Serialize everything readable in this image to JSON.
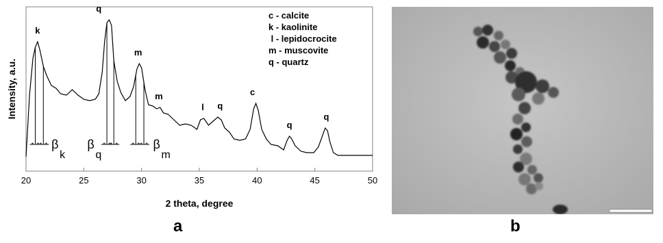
{
  "chart_data": {
    "type": "line",
    "xlabel": "2 theta, degree",
    "ylabel": "Intensity, a.u.",
    "xlim": [
      20,
      50
    ],
    "ylim": [
      0,
      100
    ],
    "x_ticks": [
      "20",
      "25",
      "30",
      "35",
      "40",
      "45",
      "50"
    ],
    "grid": false,
    "legend_position": "top-right",
    "legend": [
      "c - calcite",
      "k - kaolinite",
      " l - lepidocrocite",
      "m - muscovite",
      "q - quartz"
    ],
    "series": [
      {
        "x": [
          20.0,
          20.3,
          20.6,
          20.8,
          21.0,
          21.2,
          21.5,
          21.8,
          22.2,
          22.6,
          23.0,
          23.5,
          24.0,
          24.5,
          25.0,
          25.5,
          26.0,
          26.3,
          26.6,
          26.8,
          27.0,
          27.2,
          27.4,
          27.6,
          27.9,
          28.2,
          28.6,
          29.0,
          29.3,
          29.6,
          29.8,
          30.0,
          30.3,
          30.6,
          31.0,
          31.3,
          31.6,
          31.9,
          32.3,
          32.8,
          33.3,
          33.8,
          34.3,
          34.8,
          35.1,
          35.4,
          35.8,
          36.2,
          36.6,
          36.9,
          37.2,
          37.6,
          38.0,
          38.5,
          39.0,
          39.4,
          39.7,
          39.9,
          40.1,
          40.4,
          40.8,
          41.2,
          41.8,
          42.3,
          42.6,
          42.8,
          43.0,
          43.3,
          43.8,
          44.3,
          44.9,
          45.3,
          45.6,
          45.9,
          46.1,
          46.3,
          46.6,
          47.0,
          47.5,
          48.0,
          49.0,
          50.0
        ],
        "values": [
          0,
          45,
          72,
          80,
          84,
          78,
          66,
          59,
          52,
          50,
          46,
          45,
          49,
          45,
          42,
          41,
          42,
          46,
          62,
          84,
          98,
          100,
          96,
          70,
          55,
          47,
          41,
          44,
          51,
          64,
          68,
          65,
          49,
          38,
          37,
          35,
          36,
          32,
          31,
          27,
          23,
          24,
          23,
          20,
          27,
          28,
          23,
          26,
          29,
          27,
          21,
          18,
          13,
          12,
          13,
          20,
          35,
          39,
          34,
          20,
          13,
          9,
          8,
          5,
          12,
          15,
          13,
          8,
          4,
          3,
          3,
          7,
          14,
          21,
          19,
          11,
          3,
          1,
          1,
          1,
          1,
          1
        ]
      }
    ],
    "annotations": [
      {
        "text": "k",
        "x": 21.0,
        "y": 84
      },
      {
        "text": "q",
        "x": 26.3,
        "y": 100
      },
      {
        "text": "m",
        "x": 29.7,
        "y": 68
      },
      {
        "text": "m",
        "x": 31.5,
        "y": 36
      },
      {
        "text": "l",
        "x": 35.3,
        "y": 28
      },
      {
        "text": "q",
        "x": 36.8,
        "y": 29
      },
      {
        "text": "c",
        "x": 39.6,
        "y": 39
      },
      {
        "text": "q",
        "x": 42.8,
        "y": 15
      },
      {
        "text": "q",
        "x": 46.0,
        "y": 21
      }
    ],
    "widths": [
      {
        "symbol": "β",
        "subscript": "k",
        "x1": 20.8,
        "x2": 21.5,
        "y": 9,
        "label_x": 22.2
      },
      {
        "symbol": "β",
        "subscript": "q",
        "x1": 27.0,
        "x2": 27.6,
        "y": 9,
        "label_x": 25.3
      },
      {
        "symbol": "β",
        "subscript": "m",
        "x1": 29.5,
        "x2": 30.2,
        "y": 9,
        "label_x": 31.0
      }
    ]
  },
  "panels": {
    "a_label": "a",
    "b_label": "b"
  },
  "micrograph": {
    "background_color": "#b9b9b9",
    "particle_color": "#3a3a3a"
  }
}
